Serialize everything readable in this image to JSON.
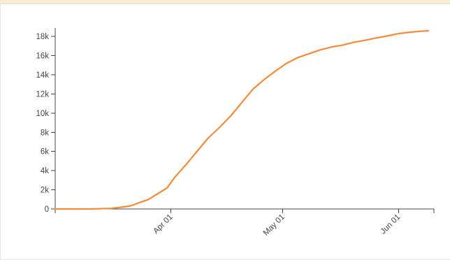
{
  "chart_data": {
    "type": "line",
    "title": "",
    "xlabel": "",
    "ylabel": "",
    "x_scale": "time",
    "xlim": [
      "2020-03-01",
      "2020-06-09"
    ],
    "ylim": [
      0,
      18600
    ],
    "y_ticks": [
      0,
      2000,
      4000,
      6000,
      8000,
      10000,
      12000,
      14000,
      16000,
      18000
    ],
    "y_tick_labels": [
      "0",
      "2k",
      "4k",
      "6k",
      "8k",
      "10k",
      "12k",
      "14k",
      "16k",
      "18k"
    ],
    "x_ticks": [
      "2020-04-01",
      "2020-05-01",
      "2020-06-01"
    ],
    "x_tick_labels": [
      "Apr 01",
      "May 01",
      "Jun 01"
    ],
    "grid": false,
    "legend": "none",
    "series": [
      {
        "color": "#f28c3a",
        "points": [
          [
            "2020-03-01",
            0
          ],
          [
            "2020-03-06",
            0
          ],
          [
            "2020-03-11",
            10
          ],
          [
            "2020-03-16",
            60
          ],
          [
            "2020-03-21",
            300
          ],
          [
            "2020-03-26",
            1000
          ],
          [
            "2020-03-31",
            2200
          ],
          [
            "2020-04-02",
            3300
          ],
          [
            "2020-04-05",
            4600
          ],
          [
            "2020-04-08",
            6000
          ],
          [
            "2020-04-11",
            7400
          ],
          [
            "2020-04-14",
            8500
          ],
          [
            "2020-04-17",
            9700
          ],
          [
            "2020-04-20",
            11100
          ],
          [
            "2020-04-23",
            12500
          ],
          [
            "2020-04-26",
            13500
          ],
          [
            "2020-04-29",
            14400
          ],
          [
            "2020-05-02",
            15200
          ],
          [
            "2020-05-05",
            15800
          ],
          [
            "2020-05-08",
            16200
          ],
          [
            "2020-05-11",
            16600
          ],
          [
            "2020-05-14",
            16900
          ],
          [
            "2020-05-17",
            17100
          ],
          [
            "2020-05-20",
            17400
          ],
          [
            "2020-05-23",
            17600
          ],
          [
            "2020-05-26",
            17850
          ],
          [
            "2020-05-29",
            18050
          ],
          [
            "2020-06-01",
            18300
          ],
          [
            "2020-06-04",
            18450
          ],
          [
            "2020-06-07",
            18550
          ],
          [
            "2020-06-09",
            18600
          ]
        ]
      }
    ]
  }
}
